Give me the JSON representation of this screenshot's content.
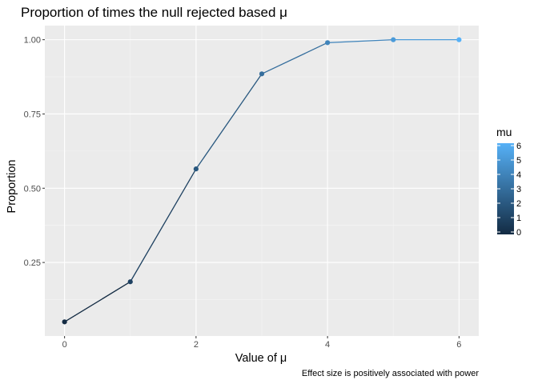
{
  "chart_data": {
    "type": "line",
    "title": "Proportion of times the null rejected based μ",
    "xlabel": "Value of μ",
    "ylabel": "Proportion",
    "caption": "Effect size is positively associated with power",
    "x": [
      0,
      1,
      2,
      3,
      4,
      5,
      6
    ],
    "series": [
      {
        "values": [
          0.05,
          0.185,
          0.565,
          0.885,
          0.99,
          1.0,
          1.0
        ]
      }
    ],
    "xlim": [
      -0.3,
      6.3
    ],
    "ylim": [
      0.0025,
      1.0475
    ],
    "x_ticks": [
      0,
      2,
      4,
      6
    ],
    "x_tick_labels": [
      "0",
      "2",
      "4",
      "6"
    ],
    "y_ticks": [
      0.25,
      0.5,
      0.75,
      1.0
    ],
    "y_tick_labels": [
      "0.25",
      "0.50",
      "0.75",
      "1.00"
    ],
    "grid": true,
    "legend": {
      "title": "mu",
      "position": "right",
      "type": "colorbar",
      "min": 0,
      "max": 6,
      "ticks": [
        0,
        1,
        2,
        3,
        4,
        5,
        6
      ],
      "tick_labels": [
        "0",
        "1",
        "2",
        "3",
        "4",
        "5",
        "6"
      ],
      "low_color": "#132B43",
      "high_color": "#56B1F7"
    },
    "colors": {
      "panel_background": "#EBEBEB",
      "grid_major": "#FFFFFF",
      "grid_minor": "#F5F5F5"
    }
  }
}
